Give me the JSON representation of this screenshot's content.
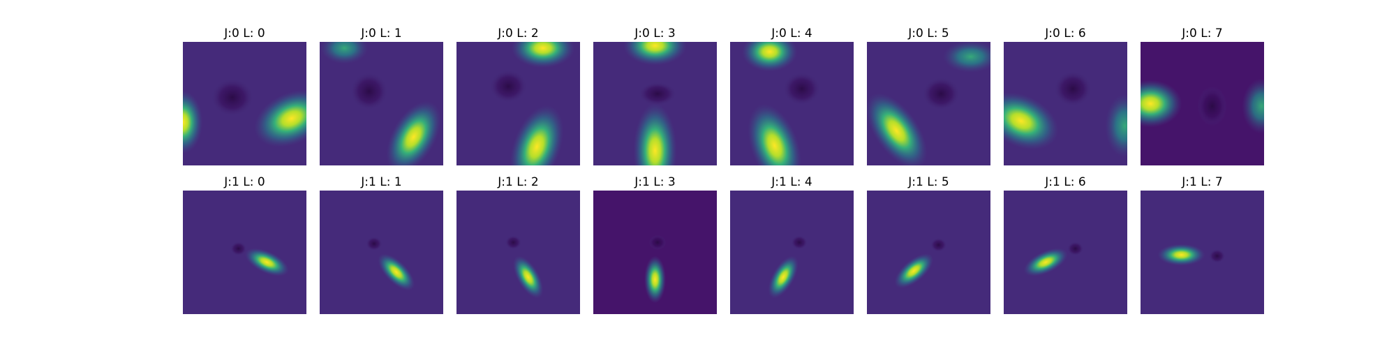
{
  "chart_data": {
    "type": "heatmap",
    "colormap": "viridis",
    "axes_visible": false,
    "grid": "2 rows × 8 columns of filter images",
    "rows": [
      {
        "panels": [
          {
            "title": "J:0 L: 0",
            "J": 0,
            "L": 0
          },
          {
            "title": "J:0 L: 1",
            "J": 0,
            "L": 1
          },
          {
            "title": "J:0 L: 2",
            "J": 0,
            "L": 2
          },
          {
            "title": "J:0 L: 3",
            "J": 0,
            "L": 3
          },
          {
            "title": "J:0 L: 4",
            "J": 0,
            "L": 4
          },
          {
            "title": "J:0 L: 5",
            "J": 0,
            "L": 5
          },
          {
            "title": "J:0 L: 6",
            "J": 0,
            "L": 6
          },
          {
            "title": "J:0 L: 7",
            "J": 0,
            "L": 7
          }
        ]
      },
      {
        "panels": [
          {
            "title": "J:1 L: 0",
            "J": 1,
            "L": 0
          },
          {
            "title": "J:1 L: 1",
            "J": 1,
            "L": 1
          },
          {
            "title": "J:1 L: 2",
            "J": 1,
            "L": 2
          },
          {
            "title": "J:1 L: 3",
            "J": 1,
            "L": 3
          },
          {
            "title": "J:1 L: 4",
            "J": 1,
            "L": 4
          },
          {
            "title": "J:1 L: 5",
            "J": 1,
            "L": 5
          },
          {
            "title": "J:1 L: 6",
            "J": 1,
            "L": 6
          },
          {
            "title": "J:1 L: 7",
            "J": 1,
            "L": 7
          }
        ]
      }
    ]
  }
}
